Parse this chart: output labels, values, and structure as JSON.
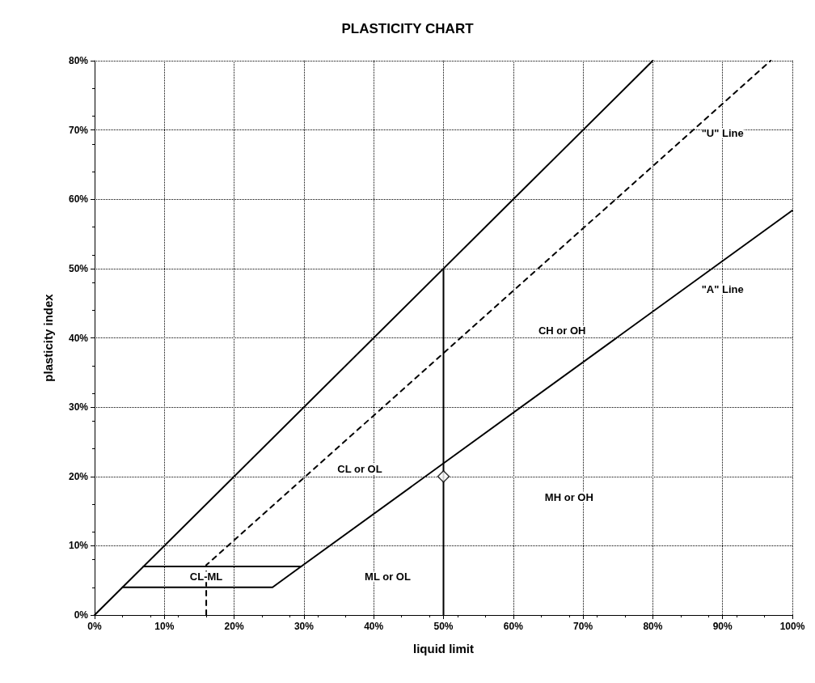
{
  "chart_data": {
    "type": "line",
    "title": "PLASTICITY CHART",
    "xlabel": "liquid limit",
    "ylabel": "plasticity index",
    "xlim": [
      0,
      100
    ],
    "ylim": [
      0,
      80
    ],
    "xticks": [
      {
        "value": 0,
        "label": "0%"
      },
      {
        "value": 10,
        "label": "10%"
      },
      {
        "value": 20,
        "label": "20%"
      },
      {
        "value": 30,
        "label": "30%"
      },
      {
        "value": 40,
        "label": "40%"
      },
      {
        "value": 50,
        "label": "50%"
      },
      {
        "value": 60,
        "label": "60%"
      },
      {
        "value": 70,
        "label": "70%"
      },
      {
        "value": 80,
        "label": "80%"
      },
      {
        "value": 90,
        "label": "90%"
      },
      {
        "value": 100,
        "label": "100%"
      }
    ],
    "yticks": [
      {
        "value": 0,
        "label": "0%"
      },
      {
        "value": 10,
        "label": "10%"
      },
      {
        "value": 20,
        "label": "20%"
      },
      {
        "value": 30,
        "label": "30%"
      },
      {
        "value": 40,
        "label": "40%"
      },
      {
        "value": 50,
        "label": "50%"
      },
      {
        "value": 60,
        "label": "60%"
      },
      {
        "value": 70,
        "label": "70%"
      },
      {
        "value": 80,
        "label": "80%"
      }
    ],
    "grid": true,
    "marker": "none",
    "series": [
      {
        "color": "#000000",
        "line_style": "solid",
        "x": [
          0,
          80
        ],
        "values": [
          0,
          80
        ]
      },
      {
        "color": "#000000",
        "line_style": "dashed",
        "x": [
          16,
          16,
          96.9
        ],
        "values": [
          0,
          7.2,
          80
        ]
      },
      {
        "color": "#000000",
        "line_style": "solid",
        "x": [
          7,
          29.6,
          100
        ],
        "values": [
          7,
          7,
          58.4
        ]
      },
      {
        "color": "#000000",
        "line_style": "solid",
        "x": [
          4,
          25.5,
          29.6
        ],
        "values": [
          4,
          4,
          7
        ]
      },
      {
        "color": "#000000",
        "line_style": "solid",
        "x": [
          50,
          50
        ],
        "values": [
          0,
          50
        ]
      },
      {
        "type": "scatter",
        "color": "#000000",
        "marker": "diamond",
        "x": [
          50
        ],
        "values": [
          20
        ]
      }
    ],
    "annotations": [
      "CL-ML",
      "ML or OL",
      "CL or OL",
      "MH or OH",
      "CH or OH",
      "\"U\" Line",
      "\"A\" Line"
    ]
  }
}
